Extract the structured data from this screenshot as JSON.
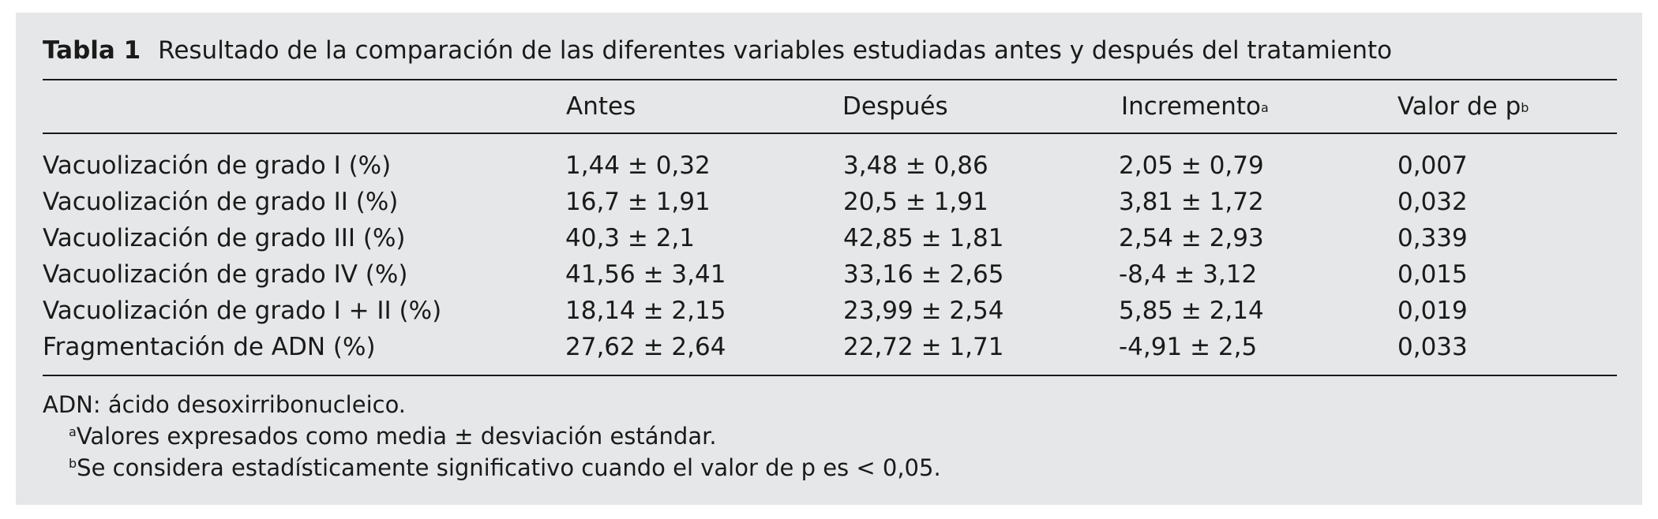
{
  "table": {
    "label": "Tabla 1",
    "title": "Resultado de la comparación de las diferentes variables estudiadas antes y después del tratamiento",
    "headers": {
      "antes": "Antes",
      "despues": "Después",
      "incremento": "Incremento",
      "incremento_sup": "a",
      "p": "Valor de p",
      "p_sup": "b"
    },
    "rows": [
      {
        "variable": "Vacuolización de grado I (%)",
        "antes": "1,44 ± 0,32",
        "despues": "3,48 ± 0,86",
        "incremento": "2,05 ± 0,79",
        "p": "0,007"
      },
      {
        "variable": "Vacuolización de grado II (%)",
        "antes": "16,7 ± 1,91",
        "despues": "20,5 ± 1,91",
        "incremento": "3,81 ± 1,72",
        "p": "0,032"
      },
      {
        "variable": "Vacuolización de grado III (%)",
        "antes": "40,3 ± 2,1",
        "despues": "42,85 ± 1,81",
        "incremento": "2,54 ± 2,93",
        "p": "0,339"
      },
      {
        "variable": "Vacuolización de grado IV (%)",
        "antes": "41,56 ± 3,41",
        "despues": "33,16 ± 2,65",
        "incremento": "-8,4 ± 3,12",
        "p": "0,015"
      },
      {
        "variable": "Vacuolización de grado I + II (%)",
        "antes": "18,14 ± 2,15",
        "despues": "23,99 ± 2,54",
        "incremento": "5,85 ± 2,14",
        "p": "0,019"
      },
      {
        "variable": "Fragmentación de ADN (%)",
        "antes": "27,62 ± 2,64",
        "despues": "22,72 ± 1,71",
        "incremento": "-4,91 ± 2,5",
        "p": "0,033"
      }
    ],
    "footnotes": {
      "abbrev": "ADN: ácido desoxirribonucleico.",
      "a_mark": "a",
      "a_text": "Valores expresados como media ± desviación estándar.",
      "b_mark": "b",
      "b_text": "Se considera estadísticamente significativo cuando el valor de p es < 0,05."
    }
  }
}
